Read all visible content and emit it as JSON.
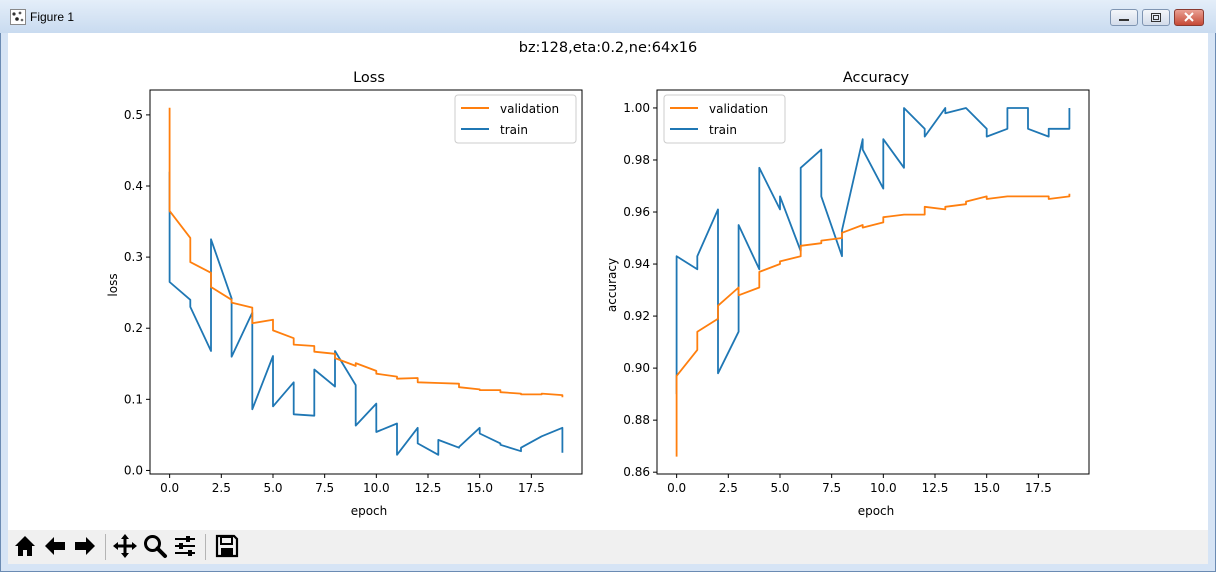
{
  "window": {
    "title": "Figure 1"
  },
  "figure": {
    "suptitle": "bz:128,eta:0.2,ne:64x16"
  },
  "toolbar": {
    "buttons": [
      "home-icon",
      "back-icon",
      "forward-icon",
      "pan-icon",
      "zoom-icon",
      "configure-icon",
      "save-icon"
    ]
  },
  "colors": {
    "validation": "#ff7f0e",
    "train": "#1f77b4"
  },
  "chart_data": [
    {
      "type": "line",
      "title": "Loss",
      "xlabel": "epoch",
      "ylabel": "loss",
      "xlim": [
        -0.95,
        19.95
      ],
      "ylim": [
        -0.005,
        0.535
      ],
      "xticks": [
        0,
        2.5,
        5,
        7.5,
        10,
        12.5,
        15,
        17.5
      ],
      "xtick_labels": [
        "0.0",
        "2.5",
        "5.0",
        "7.5",
        "10.0",
        "12.5",
        "15.0",
        "17.5"
      ],
      "yticks": [
        0,
        0.1,
        0.2,
        0.3,
        0.4,
        0.5
      ],
      "ytick_labels": [
        "0.0",
        "0.1",
        "0.2",
        "0.3",
        "0.4",
        "0.5"
      ],
      "legend": "upper right",
      "series": [
        {
          "name": "validation",
          "color": "#ff7f0e",
          "x": [
            0,
            0,
            0,
            1,
            1,
            2,
            2,
            3,
            3,
            4,
            4,
            5,
            5,
            6,
            6,
            7,
            7,
            8,
            8,
            9,
            9,
            10,
            10,
            11,
            11,
            12,
            12,
            13,
            13,
            14,
            14,
            15,
            15,
            16,
            16,
            17,
            17,
            18,
            18,
            19,
            19
          ],
          "y": [
            0.51,
            0.37,
            0.365,
            0.327,
            0.293,
            0.278,
            0.258,
            0.24,
            0.236,
            0.229,
            0.207,
            0.212,
            0.197,
            0.186,
            0.177,
            0.175,
            0.167,
            0.164,
            0.158,
            0.147,
            0.151,
            0.14,
            0.136,
            0.132,
            0.129,
            0.13,
            0.124,
            0.123,
            0.123,
            0.122,
            0.117,
            0.114,
            0.113,
            0.113,
            0.11,
            0.108,
            0.107,
            0.107,
            0.108,
            0.106,
            0.103
          ]
        },
        {
          "name": "train",
          "color": "#1f77b4",
          "x": [
            0,
            0,
            0,
            1,
            1,
            2,
            2,
            3,
            3,
            4,
            4,
            5,
            5,
            6,
            6,
            7,
            7,
            8,
            8,
            9,
            9,
            10,
            10,
            11,
            11,
            12,
            12,
            13,
            13,
            14,
            14,
            15,
            15,
            16,
            16,
            17,
            17,
            18,
            18,
            19,
            19
          ],
          "y": [
            0.42,
            0.36,
            0.265,
            0.24,
            0.23,
            0.168,
            0.325,
            0.242,
            0.16,
            0.222,
            0.086,
            0.161,
            0.09,
            0.124,
            0.079,
            0.077,
            0.142,
            0.118,
            0.168,
            0.12,
            0.063,
            0.094,
            0.054,
            0.066,
            0.022,
            0.06,
            0.038,
            0.022,
            0.043,
            0.032,
            0.033,
            0.06,
            0.052,
            0.038,
            0.036,
            0.027,
            0.032,
            0.048,
            0.048,
            0.06,
            0.025
          ]
        }
      ]
    },
    {
      "type": "line",
      "title": "Accuracy",
      "xlabel": "epoch",
      "ylabel": "accuracy",
      "xlim": [
        -0.95,
        19.95
      ],
      "ylim": [
        0.8593,
        1.0069
      ],
      "xticks": [
        0,
        2.5,
        5,
        7.5,
        10,
        12.5,
        15,
        17.5
      ],
      "xtick_labels": [
        "0.0",
        "2.5",
        "5.0",
        "7.5",
        "10.0",
        "12.5",
        "15.0",
        "17.5"
      ],
      "yticks": [
        0.86,
        0.88,
        0.9,
        0.92,
        0.94,
        0.96,
        0.98,
        1.0
      ],
      "ytick_labels": [
        "0.86",
        "0.88",
        "0.90",
        "0.92",
        "0.94",
        "0.96",
        "0.98",
        "1.00"
      ],
      "legend": "upper left",
      "series": [
        {
          "name": "validation",
          "color": "#ff7f0e",
          "x": [
            0,
            0,
            0,
            1,
            1,
            2,
            2,
            3,
            3,
            4,
            4,
            5,
            5,
            6,
            6,
            7,
            7,
            8,
            8,
            9,
            9,
            10,
            10,
            11,
            11,
            12,
            12,
            13,
            13,
            14,
            14,
            15,
            15,
            16,
            16,
            17,
            17,
            18,
            18,
            19,
            19
          ],
          "y": [
            0.866,
            0.891,
            0.897,
            0.907,
            0.914,
            0.919,
            0.924,
            0.931,
            0.928,
            0.931,
            0.937,
            0.94,
            0.941,
            0.943,
            0.947,
            0.948,
            0.949,
            0.95,
            0.952,
            0.955,
            0.954,
            0.956,
            0.958,
            0.959,
            0.959,
            0.959,
            0.962,
            0.961,
            0.962,
            0.963,
            0.964,
            0.966,
            0.965,
            0.966,
            0.966,
            0.966,
            0.966,
            0.966,
            0.965,
            0.966,
            0.967
          ]
        },
        {
          "name": "train",
          "color": "#1f77b4",
          "x": [
            0,
            0,
            0,
            1,
            1,
            2,
            2,
            3,
            3,
            4,
            4,
            5,
            5,
            6,
            6,
            7,
            7,
            8,
            8,
            9,
            9,
            10,
            10,
            11,
            11,
            12,
            12,
            13,
            13,
            14,
            14,
            15,
            15,
            16,
            16,
            17,
            17,
            18,
            18,
            19,
            19
          ],
          "y": [
            0.89,
            0.897,
            0.943,
            0.938,
            0.943,
            0.961,
            0.898,
            0.914,
            0.955,
            0.938,
            0.977,
            0.961,
            0.966,
            0.945,
            0.977,
            0.984,
            0.966,
            0.943,
            0.953,
            0.988,
            0.984,
            0.969,
            0.988,
            0.977,
            1.0,
            0.992,
            0.989,
            1.0,
            0.998,
            1.0,
            1.0,
            0.992,
            0.989,
            0.992,
            1.0,
            1.0,
            0.992,
            0.989,
            0.992,
            0.992,
            1.0
          ]
        }
      ]
    }
  ]
}
